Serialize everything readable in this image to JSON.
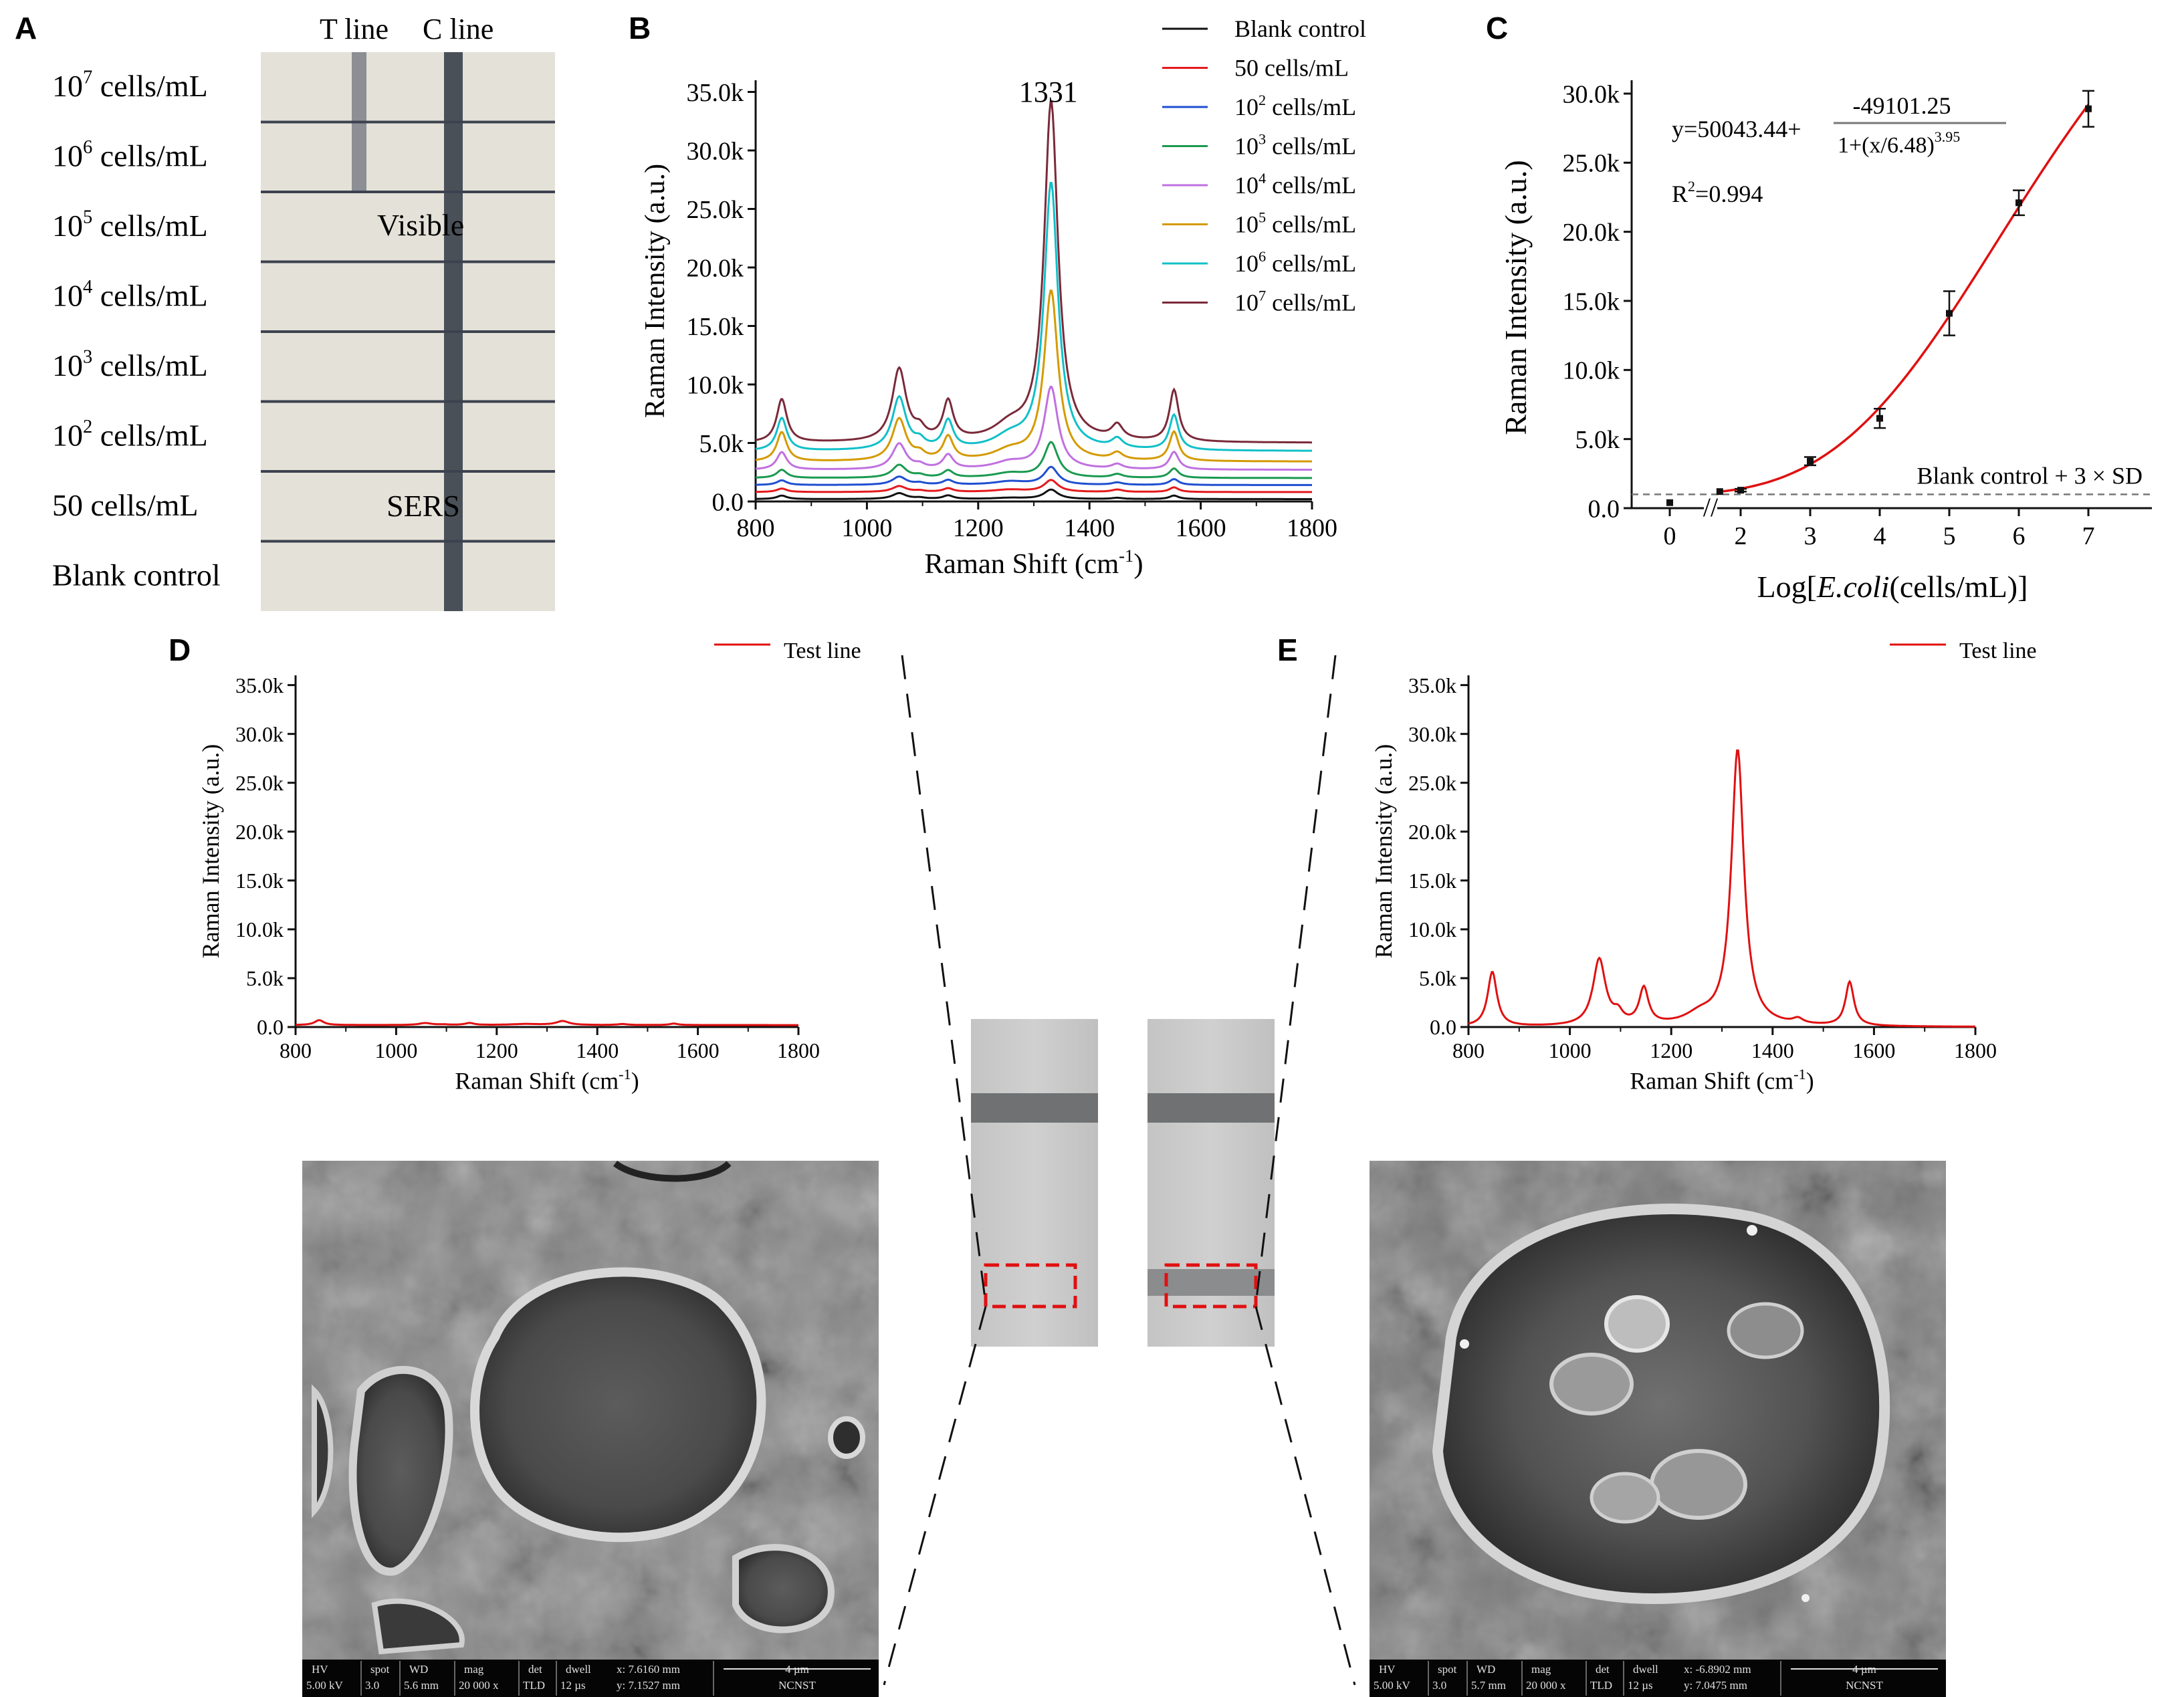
{
  "panel_letters": {
    "a": "A",
    "b": "B",
    "c": "C",
    "d": "D",
    "e": "E"
  },
  "panel_a": {
    "col_headers": [
      "T line",
      "C line"
    ],
    "row_labels": [
      {
        "base": "10",
        "exp": "7",
        "rest": " cells/mL"
      },
      {
        "base": "10",
        "exp": "6",
        "rest": " cells/mL"
      },
      {
        "base": "10",
        "exp": "5",
        "rest": " cells/mL"
      },
      {
        "base": "10",
        "exp": "4",
        "rest": " cells/mL"
      },
      {
        "base": "10",
        "exp": "3",
        "rest": " cells/mL"
      },
      {
        "base": "10",
        "exp": "2",
        "rest": " cells/mL"
      },
      {
        "base": "",
        "exp": "",
        "rest": "50 cells/mL"
      },
      {
        "base": "",
        "exp": "",
        "rest": "Blank control"
      }
    ],
    "overlay_visible": "Visible",
    "overlay_sers": "SERS",
    "t_line_visible_rows": 2
  },
  "colors": {
    "blank": "#111111",
    "c50": "#e41a1c",
    "c1e2": "#1f4fd0",
    "c1e3": "#1a9a50",
    "c1e4": "#c070e0",
    "c1e5": "#d49a00",
    "c1e6": "#10c0c8",
    "c1e7": "#7a2a3a",
    "fit": "#e01010",
    "test": "#e01010",
    "box": "#e01010"
  },
  "sem_bars": [
    {
      "hv_label": "HV",
      "hv": "5.00 kV",
      "spot_label": "spot",
      "spot": "3.0",
      "wd_label": "WD",
      "wd": "5.6 mm",
      "mag_label": "mag",
      "mag": "20 000 x",
      "det_label": "det",
      "det": "TLD",
      "dwell_label": "dwell",
      "dwell": "12 µs",
      "x": "x: 7.6160 mm",
      "y": "y: 7.1527 mm",
      "scale": "4 µm",
      "org": "NCNST"
    },
    {
      "hv_label": "HV",
      "hv": "5.00 kV",
      "spot_label": "spot",
      "spot": "3.0",
      "wd_label": "WD",
      "wd": "5.7 mm",
      "mag_label": "mag",
      "mag": "20 000 x",
      "det_label": "det",
      "det": "TLD",
      "dwell_label": "dwell",
      "dwell": "12 µs",
      "x": "x: -6.8902 mm",
      "y": "y: 7.0475 mm",
      "scale": "4 µm",
      "org": "NCNST"
    }
  ],
  "chart_data": [
    {
      "id": "B",
      "type": "line",
      "xlabel": "Raman Shift (cm",
      "xlabel_sup": "-1",
      "xlabel_end": ")",
      "ylabel": "Raman Intensity (a.u.)",
      "xlim": [
        800,
        1800
      ],
      "ylim": [
        0,
        36000
      ],
      "x_ticks": [
        800,
        1000,
        1200,
        1400,
        1600,
        1800
      ],
      "y_ticks": [
        "0.0",
        "5.0k",
        "10.0k",
        "15.0k",
        "20.0k",
        "25.0k",
        "30.0k",
        "35.0k"
      ],
      "annotation": "1331",
      "annotation_x": 1331,
      "legend_position": "top-right",
      "peaks_cm": [
        847,
        1058,
        1095,
        1146,
        1257,
        1331,
        1450,
        1552
      ],
      "series": [
        {
          "base": "",
          "exp": "",
          "rest": "Blank control",
          "color_key": "blank",
          "baseline": 200,
          "peaks": [
            300,
            500,
            100,
            300,
            100,
            800,
            100,
            300
          ]
        },
        {
          "base": "",
          "exp": "",
          "rest": "50 cells/mL",
          "color_key": "c50",
          "baseline": 800,
          "peaks": [
            300,
            500,
            100,
            300,
            200,
            1000,
            200,
            400
          ]
        },
        {
          "base": "10",
          "exp": "2",
          "rest": " cells/mL",
          "color_key": "c1e2",
          "baseline": 1400,
          "peaks": [
            400,
            700,
            150,
            400,
            300,
            1500,
            200,
            500
          ]
        },
        {
          "base": "10",
          "exp": "3",
          "rest": " cells/mL",
          "color_key": "c1e3",
          "baseline": 2000,
          "peaks": [
            700,
            1100,
            200,
            600,
            400,
            3000,
            300,
            800
          ]
        },
        {
          "base": "10",
          "exp": "4",
          "rest": " cells/mL",
          "color_key": "c1e4",
          "baseline": 2700,
          "peaks": [
            1500,
            2200,
            300,
            1200,
            600,
            7000,
            400,
            1500
          ]
        },
        {
          "base": "10",
          "exp": "5",
          "rest": " cells/mL",
          "color_key": "c1e5",
          "baseline": 3400,
          "peaks": [
            2500,
            3600,
            500,
            2000,
            800,
            14500,
            600,
            2500
          ]
        },
        {
          "base": "10",
          "exp": "6",
          "rest": " cells/mL",
          "color_key": "c1e6",
          "baseline": 4300,
          "peaks": [
            2800,
            4500,
            600,
            2400,
            1000,
            22800,
            800,
            3000
          ]
        },
        {
          "base": "10",
          "exp": "7",
          "rest": " cells/mL",
          "color_key": "c1e7",
          "baseline": 5000,
          "peaks": [
            3700,
            6200,
            800,
            3300,
            1200,
            29000,
            1200,
            4400
          ]
        }
      ]
    },
    {
      "id": "C",
      "type": "scatter",
      "xlabel_a": "Log[",
      "xlabel_i": "E.coli",
      "xlabel_b": "(cells/mL)]",
      "ylabel": "Raman Intensity (a.u.)",
      "ylim": [
        0,
        30000
      ],
      "y_ticks": [
        "0.0",
        "5.0k",
        "10.0k",
        "15.0k",
        "20.0k",
        "25.0k",
        "30.0k"
      ],
      "x_ticks": [
        "0",
        "2",
        "3",
        "4",
        "5",
        "6",
        "7"
      ],
      "axis_break": "//",
      "equation_prefix": "y=50043.44+",
      "equation_numerator": "-49101.25",
      "equation_denominator": "1+(x/6.48)",
      "equation_exponent": "3.95",
      "r2_base": "R",
      "r2_exp": "2",
      "r2_value": "=0.994",
      "threshold_label": "Blank control + 3 × SD",
      "threshold_value": 1000,
      "fit": {
        "A1": 50043.44,
        "A2": 945.19,
        "x0": 6.48,
        "p": 3.95
      },
      "points": [
        {
          "x": 0,
          "y": 400,
          "err": 0
        },
        {
          "x": 1.7,
          "y": 1200,
          "err": 0
        },
        {
          "x": 2,
          "y": 1300,
          "err": 100
        },
        {
          "x": 3,
          "y": 3400,
          "err": 300
        },
        {
          "x": 4,
          "y": 6500,
          "err": 700
        },
        {
          "x": 5,
          "y": 14100,
          "err": 1600
        },
        {
          "x": 6,
          "y": 22100,
          "err": 900
        },
        {
          "x": 7,
          "y": 28900,
          "err": 1300
        }
      ]
    },
    {
      "id": "D",
      "type": "line",
      "legend": "Test line",
      "xlabel": "Raman Shift (cm",
      "xlabel_sup": "-1",
      "xlabel_end": ")",
      "ylabel": "Raman Intensity (a.u.)",
      "xlim": [
        800,
        1800
      ],
      "ylim": [
        0,
        36000
      ],
      "x_ticks": [
        800,
        1000,
        1200,
        1400,
        1600,
        1800
      ],
      "y_ticks": [
        "0.0",
        "5.0k",
        "10.0k",
        "15.0k",
        "20.0k",
        "25.0k",
        "30.0k",
        "35.0k"
      ],
      "baseline": 200,
      "peaks": [
        500,
        200,
        50,
        200,
        100,
        400,
        100,
        150
      ]
    },
    {
      "id": "E",
      "type": "line",
      "legend": "Test line",
      "xlabel": "Raman Shift (cm",
      "xlabel_sup": "-1",
      "xlabel_end": ")",
      "ylabel": "Raman Intensity (a.u.)",
      "xlim": [
        800,
        1800
      ],
      "ylim": [
        0,
        36000
      ],
      "x_ticks": [
        800,
        1000,
        1200,
        1400,
        1600,
        1800
      ],
      "y_ticks": [
        "0.0",
        "5.0k",
        "10.0k",
        "15.0k",
        "20.0k",
        "25.0k",
        "30.0k",
        "35.0k"
      ],
      "baseline": 0,
      "peaks": [
        5600,
        6800,
        1000,
        3700,
        1000,
        28200,
        500,
        4500
      ]
    }
  ]
}
